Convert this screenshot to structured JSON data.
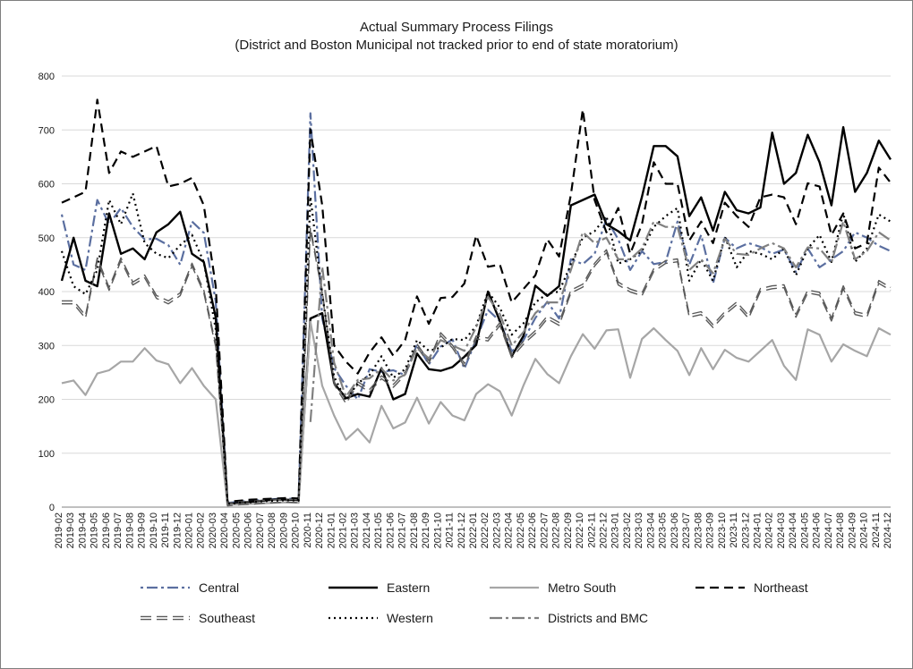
{
  "chart": {
    "type": "line",
    "title_line1": "Actual Summary Process Filings",
    "title_line2": "(District and Boston Municipal not tracked prior to end of state moratorium)",
    "title_fontsize": 15,
    "background_color": "#ffffff",
    "border_color": "#7f7f7f",
    "grid_color": "#d9d9d9",
    "axis_line_color": "#808080",
    "axis_label_color": "#1a1a1a",
    "tick_fontsize": 11,
    "legend_fontsize": 14,
    "ylim": [
      0,
      800
    ],
    "ytick_step": 100,
    "categories": [
      "2019-02",
      "2019-03",
      "2019-04",
      "2019-05",
      "2019-06",
      "2019-07",
      "2019-08",
      "2019-09",
      "2019-10",
      "2019-11",
      "2019-12",
      "2020-01",
      "2020-02",
      "2020-03",
      "2020-04",
      "2020-05",
      "2020-06",
      "2020-07",
      "2020-08",
      "2020-09",
      "2020-10",
      "2020-11",
      "2020-12",
      "2021-01",
      "2021-02",
      "2021-03",
      "2021-04",
      "2021-05",
      "2021-06",
      "2021-07",
      "2021-08",
      "2021-09",
      "2021-10",
      "2021-11",
      "2021-12",
      "2022-01",
      "2022-02",
      "2022-03",
      "2022-04",
      "2022-05",
      "2022-06",
      "2022-07",
      "2022-08",
      "2022-09",
      "2022-10",
      "2022-11",
      "2022-12",
      "2023-01",
      "2023-02",
      "2023-03",
      "2023-04",
      "2023-05",
      "2023-06",
      "2023-07",
      "2023-08",
      "2023-09",
      "2023-10",
      "2023-11",
      "2023-12",
      "2024-01",
      "2024-02",
      "2024-03",
      "2024-04",
      "2024-05",
      "2024-06",
      "2024-07",
      "2024-08",
      "2024-09",
      "2024-10",
      "2024-11",
      "2024-12"
    ],
    "series": [
      {
        "name": "Central",
        "color": "#5b6fa0",
        "width": 2.2,
        "dash": "3 4 12 4",
        "double": false,
        "values": [
          543,
          450,
          440,
          570,
          525,
          555,
          520,
          497,
          498,
          486,
          450,
          530,
          509,
          382,
          8,
          10,
          12,
          13,
          15,
          16,
          15,
          731,
          350,
          258,
          225,
          200,
          256,
          251,
          254,
          245,
          302,
          265,
          298,
          311,
          257,
          311,
          366,
          345,
          289,
          310,
          351,
          381,
          350,
          460,
          451,
          470,
          535,
          497,
          440,
          475,
          451,
          455,
          530,
          450,
          505,
          415,
          500,
          480,
          490,
          483,
          470,
          478,
          436,
          480,
          445,
          460,
          475,
          510,
          500,
          485,
          475
        ]
      },
      {
        "name": "Eastern",
        "color": "#000000",
        "width": 2.4,
        "dash": "",
        "double": false,
        "values": [
          420,
          500,
          420,
          410,
          545,
          470,
          480,
          460,
          510,
          525,
          548,
          470,
          455,
          352,
          5,
          8,
          10,
          12,
          14,
          14,
          13,
          350,
          360,
          230,
          202,
          210,
          205,
          258,
          200,
          210,
          285,
          256,
          253,
          260,
          279,
          301,
          400,
          345,
          280,
          318,
          411,
          392,
          410,
          560,
          570,
          580,
          525,
          512,
          495,
          576,
          670,
          670,
          651,
          540,
          575,
          513,
          585,
          551,
          545,
          556,
          695,
          600,
          620,
          691,
          640,
          560,
          705,
          585,
          620,
          680,
          645
        ]
      },
      {
        "name": "Metro South",
        "color": "#a6a6a6",
        "width": 2.2,
        "dash": "",
        "double": false,
        "values": [
          230,
          235,
          208,
          248,
          254,
          270,
          270,
          295,
          272,
          265,
          230,
          258,
          225,
          200,
          4,
          5,
          6,
          7,
          8,
          9,
          8,
          344,
          225,
          170,
          125,
          145,
          120,
          188,
          146,
          157,
          203,
          155,
          195,
          170,
          161,
          210,
          228,
          215,
          170,
          226,
          275,
          247,
          230,
          280,
          321,
          294,
          328,
          330,
          240,
          312,
          332,
          310,
          290,
          245,
          295,
          256,
          292,
          277,
          270,
          290,
          310,
          262,
          236,
          330,
          320,
          270,
          302,
          290,
          280,
          332,
          320
        ]
      },
      {
        "name": "Northeast",
        "color": "#000000",
        "width": 2.2,
        "dash": "10 6",
        "double": false,
        "values": [
          565,
          575,
          585,
          756,
          620,
          660,
          650,
          660,
          670,
          595,
          600,
          611,
          560,
          410,
          10,
          12,
          14,
          15,
          16,
          17,
          16,
          701,
          560,
          300,
          270,
          248,
          287,
          315,
          281,
          310,
          391,
          340,
          388,
          390,
          415,
          504,
          446,
          450,
          380,
          405,
          430,
          497,
          465,
          580,
          738,
          570,
          510,
          555,
          470,
          525,
          640,
          600,
          600,
          495,
          530,
          490,
          565,
          540,
          520,
          575,
          580,
          575,
          525,
          601,
          595,
          505,
          545,
          480,
          490,
          630,
          602
        ]
      },
      {
        "name": "Southeast",
        "color": "#595959",
        "width": 1.8,
        "dash": "12 6",
        "double": true,
        "values": [
          380,
          380,
          353,
          460,
          405,
          460,
          415,
          428,
          390,
          380,
          395,
          450,
          400,
          300,
          5,
          7,
          8,
          10,
          11,
          12,
          11,
          516,
          400,
          230,
          195,
          230,
          216,
          241,
          225,
          248,
          300,
          269,
          321,
          298,
          264,
          315,
          311,
          340,
          280,
          305,
          325,
          352,
          340,
          400,
          411,
          450,
          475,
          415,
          402,
          395,
          440,
          455,
          458,
          355,
          360,
          336,
          360,
          378,
          353,
          403,
          408,
          410,
          355,
          400,
          396,
          348,
          408,
          360,
          355,
          418,
          405
        ]
      },
      {
        "name": "Western",
        "color": "#000000",
        "width": 2.2,
        "dash": "2 4",
        "double": false,
        "values": [
          475,
          410,
          395,
          440,
          570,
          525,
          582,
          490,
          470,
          462,
          486,
          505,
          455,
          330,
          6,
          8,
          9,
          11,
          12,
          13,
          12,
          576,
          395,
          242,
          198,
          230,
          245,
          280,
          240,
          256,
          310,
          290,
          296,
          312,
          310,
          336,
          400,
          370,
          320,
          341,
          380,
          396,
          400,
          450,
          500,
          512,
          540,
          452,
          460,
          475,
          520,
          540,
          555,
          420,
          460,
          420,
          502,
          445,
          475,
          470,
          460,
          480,
          430,
          480,
          505,
          455,
          545,
          455,
          480,
          543,
          530
        ]
      },
      {
        "name": "Districts and BMC",
        "color": "#808080",
        "width": 2.2,
        "dash": "14 4 3 4",
        "double": false,
        "values": [
          null,
          null,
          null,
          null,
          null,
          null,
          null,
          null,
          null,
          null,
          null,
          null,
          null,
          null,
          null,
          null,
          null,
          null,
          null,
          null,
          null,
          158,
          446,
          268,
          205,
          236,
          239,
          257,
          235,
          246,
          295,
          276,
          310,
          300,
          290,
          334,
          390,
          358,
          300,
          325,
          360,
          380,
          380,
          440,
          510,
          490,
          500,
          460,
          460,
          480,
          530,
          520,
          520,
          440,
          460,
          434,
          498,
          470,
          468,
          480,
          490,
          480,
          445,
          482,
          480,
          454,
          530,
          460,
          475,
          510,
          495
        ]
      }
    ],
    "legend": {
      "order": [
        "Central",
        "Eastern",
        "Metro South",
        "Northeast",
        "Southeast",
        "Western",
        "Districts and BMC"
      ]
    }
  }
}
